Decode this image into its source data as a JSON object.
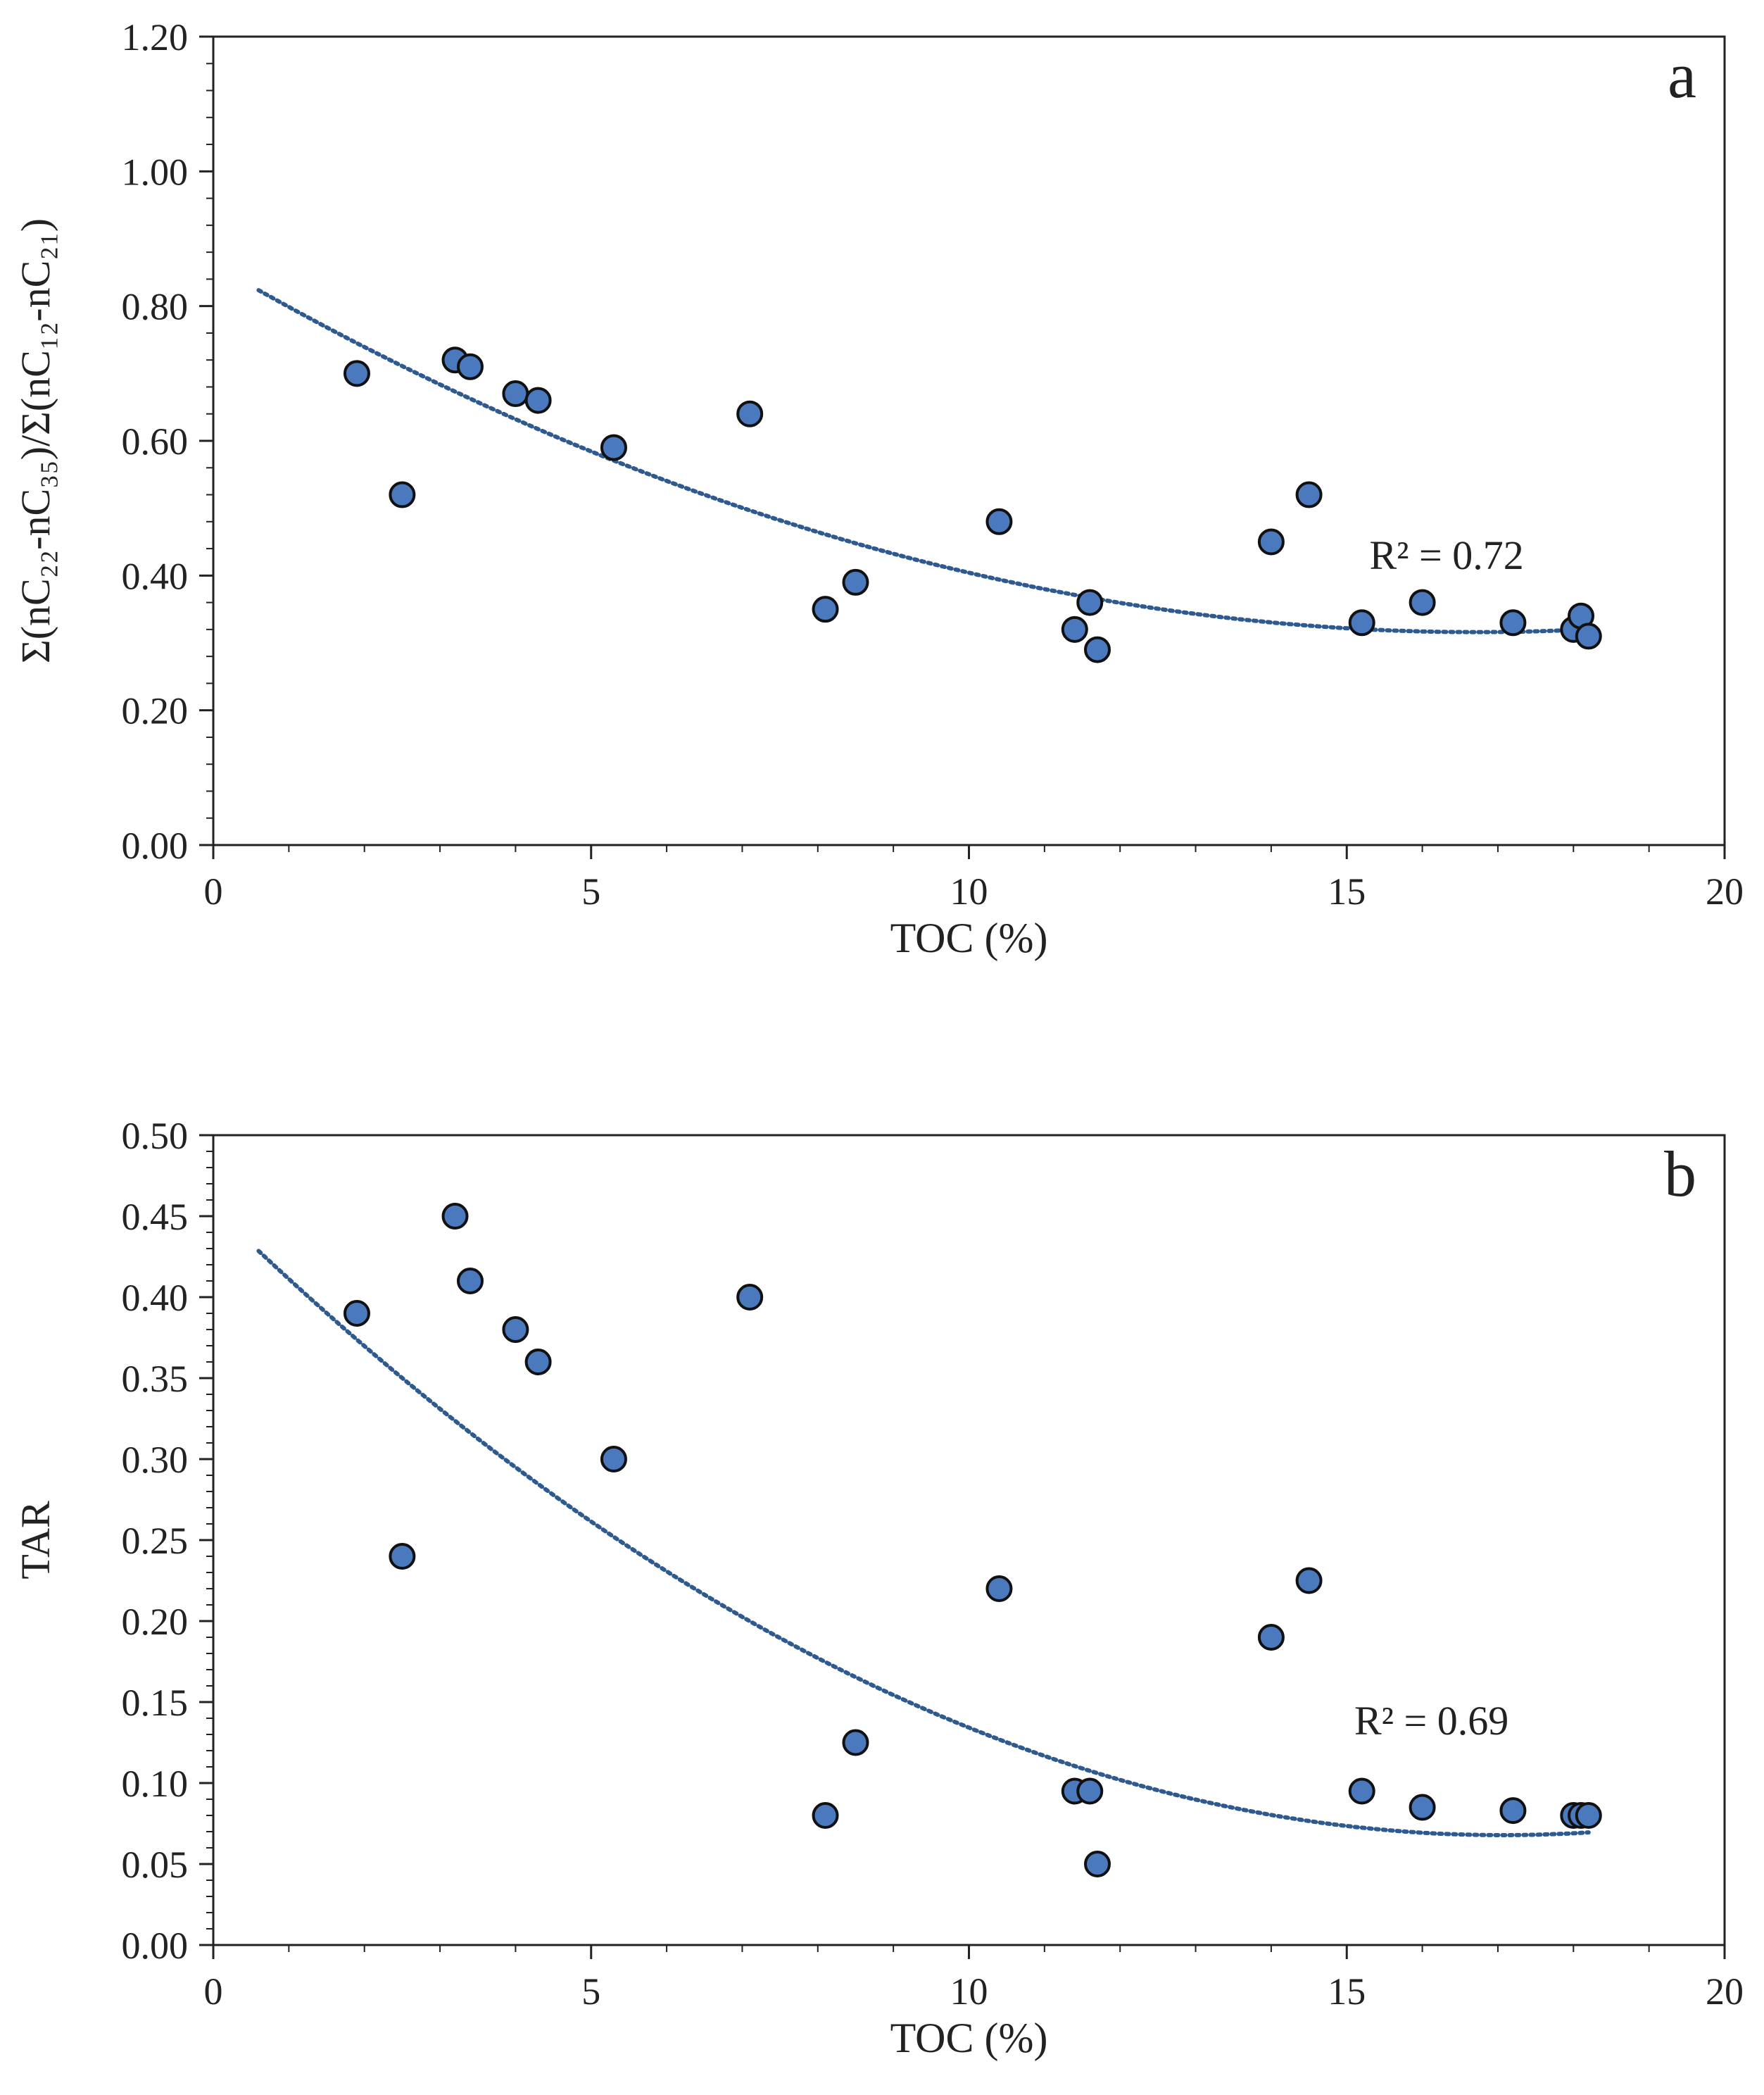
{
  "colors": {
    "marker_fill": "#4a79be",
    "marker_stroke": "#111111",
    "trend": "#2f5a8f",
    "axis": "#222222"
  },
  "chart_data": [
    {
      "panel_label": "a",
      "type": "scatter",
      "xlabel": "TOC (%)",
      "ylabel": "Σ(nC₂₂-nC₃₅)/Σ(nC₁₂-nC₂₁)",
      "xlim": [
        0,
        20
      ],
      "ylim": [
        0,
        1.2
      ],
      "xticks": [
        0,
        5,
        10,
        15,
        20
      ],
      "xtick_labels": [
        "0",
        "5",
        "10",
        "15",
        "20"
      ],
      "yticks": [
        0,
        0.2,
        0.4,
        0.6,
        0.8,
        1.0,
        1.2
      ],
      "ytick_labels": [
        "0.00",
        "0.20",
        "0.40",
        "0.60",
        "0.80",
        "1.00",
        "1.20"
      ],
      "points": [
        {
          "x": 1.9,
          "y": 0.7
        },
        {
          "x": 2.5,
          "y": 0.52
        },
        {
          "x": 3.2,
          "y": 0.72
        },
        {
          "x": 3.4,
          "y": 0.71
        },
        {
          "x": 4.0,
          "y": 0.67
        },
        {
          "x": 4.3,
          "y": 0.66
        },
        {
          "x": 5.3,
          "y": 0.59
        },
        {
          "x": 7.1,
          "y": 0.64
        },
        {
          "x": 8.1,
          "y": 0.35
        },
        {
          "x": 8.5,
          "y": 0.39
        },
        {
          "x": 10.4,
          "y": 0.48
        },
        {
          "x": 11.4,
          "y": 0.32
        },
        {
          "x": 11.6,
          "y": 0.36
        },
        {
          "x": 11.7,
          "y": 0.29
        },
        {
          "x": 14.0,
          "y": 0.45
        },
        {
          "x": 14.5,
          "y": 0.52
        },
        {
          "x": 15.2,
          "y": 0.33
        },
        {
          "x": 16.0,
          "y": 0.36
        },
        {
          "x": 17.2,
          "y": 0.33
        },
        {
          "x": 18.0,
          "y": 0.32
        },
        {
          "x": 18.1,
          "y": 0.34
        },
        {
          "x": 18.2,
          "y": 0.31
        }
      ],
      "trendline": {
        "type": "polynomial",
        "x_range": [
          0.6,
          18.2
        ],
        "coeffs": [
          0.8621,
          -0.06533,
          0.001954
        ]
      },
      "r2_label": "R² = 0.72",
      "r2_anchor": {
        "x": 15.3,
        "y": 0.41
      }
    },
    {
      "panel_label": "b",
      "type": "scatter",
      "xlabel": "TOC (%)",
      "ylabel": "TAR",
      "xlim": [
        0,
        20
      ],
      "ylim": [
        0,
        0.5
      ],
      "xticks": [
        0,
        5,
        10,
        15,
        20
      ],
      "xtick_labels": [
        "0",
        "5",
        "10",
        "15",
        "20"
      ],
      "yticks": [
        0,
        0.05,
        0.1,
        0.15,
        0.2,
        0.25,
        0.3,
        0.35,
        0.4,
        0.45,
        0.5
      ],
      "ytick_labels": [
        "0.00",
        "0.05",
        "0.10",
        "0.15",
        "0.20",
        "0.25",
        "0.30",
        "0.35",
        "0.40",
        "0.45",
        "0.50"
      ],
      "points": [
        {
          "x": 1.9,
          "y": 0.39
        },
        {
          "x": 2.5,
          "y": 0.24
        },
        {
          "x": 3.2,
          "y": 0.45
        },
        {
          "x": 3.4,
          "y": 0.41
        },
        {
          "x": 4.0,
          "y": 0.38
        },
        {
          "x": 4.3,
          "y": 0.36
        },
        {
          "x": 5.3,
          "y": 0.3
        },
        {
          "x": 7.1,
          "y": 0.4
        },
        {
          "x": 8.1,
          "y": 0.08
        },
        {
          "x": 8.5,
          "y": 0.125
        },
        {
          "x": 10.4,
          "y": 0.22
        },
        {
          "x": 11.4,
          "y": 0.095
        },
        {
          "x": 11.6,
          "y": 0.095
        },
        {
          "x": 11.7,
          "y": 0.05
        },
        {
          "x": 14.0,
          "y": 0.19
        },
        {
          "x": 14.5,
          "y": 0.225
        },
        {
          "x": 15.2,
          "y": 0.095
        },
        {
          "x": 16.0,
          "y": 0.085
        },
        {
          "x": 17.2,
          "y": 0.083
        },
        {
          "x": 18.0,
          "y": 0.08
        },
        {
          "x": 18.1,
          "y": 0.08
        },
        {
          "x": 18.2,
          "y": 0.08
        }
      ],
      "trendline": {
        "type": "polynomial",
        "x_range": [
          0.6,
          18.2
        ],
        "coeffs": [
          0.4553,
          -0.04542,
          0.001331
        ]
      },
      "r2_label": "R² = 0.69",
      "r2_anchor": {
        "x": 15.1,
        "y": 0.13
      }
    }
  ]
}
